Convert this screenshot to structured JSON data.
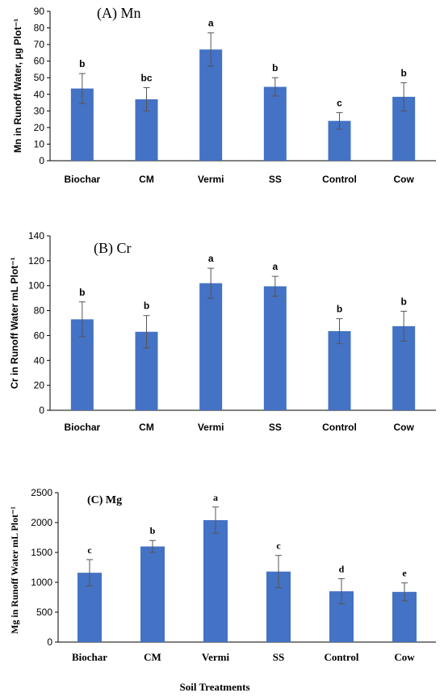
{
  "chart_data": [
    {
      "type": "bar",
      "title": "(A) Mn",
      "ylabel": "Mn in Runoff Water, µg Plot⁻¹",
      "categories": [
        "Biochar",
        "CM",
        "Vermi",
        "SS",
        "Control",
        "Cow"
      ],
      "values": [
        43.5,
        37,
        67,
        44.5,
        24,
        38.5
      ],
      "errors": [
        9,
        7,
        10,
        5.5,
        5,
        8.5
      ],
      "letters": [
        "b",
        "bc",
        "a",
        "b",
        "c",
        "b"
      ],
      "ylim": [
        0,
        90
      ],
      "yticks": [
        "0",
        "10",
        "20",
        "30",
        "40",
        "50",
        "60",
        "70",
        "80",
        "90"
      ],
      "color": "#4472C4"
    },
    {
      "type": "bar",
      "title": "(B) Cr",
      "ylabel": "Cr in Runoff Water mL Plot⁻¹",
      "categories": [
        "Biochar",
        "CM",
        "Vermi",
        "SS",
        "Control",
        "Cow"
      ],
      "values": [
        73,
        63,
        102,
        99.5,
        63.5,
        67.5
      ],
      "errors": [
        14,
        13,
        12,
        8,
        10,
        12
      ],
      "letters": [
        "b",
        "b",
        "a",
        "a",
        "b",
        "b"
      ],
      "ylim": [
        0,
        140
      ],
      "yticks": [
        "0",
        "20",
        "40",
        "60",
        "80",
        "100",
        "120",
        "140"
      ],
      "color": "#4472C4"
    },
    {
      "type": "bar",
      "title": "(C) Mg",
      "ylabel": "Mg in Runoff Water mL Plot⁻¹",
      "xlabel": "Soil Treatments",
      "categories": [
        "Biochar",
        "CM",
        "Vermi",
        "SS",
        "Control",
        "Cow"
      ],
      "values": [
        1160,
        1600,
        2040,
        1180,
        850,
        840
      ],
      "errors": [
        220,
        100,
        220,
        270,
        210,
        150
      ],
      "letters": [
        "c",
        "b",
        "a",
        "c",
        "d",
        "e"
      ],
      "ylim": [
        0,
        2500
      ],
      "yticks": [
        "0",
        "500",
        "1000",
        "1500",
        "2000",
        "2500"
      ],
      "color": "#4472C4"
    }
  ]
}
